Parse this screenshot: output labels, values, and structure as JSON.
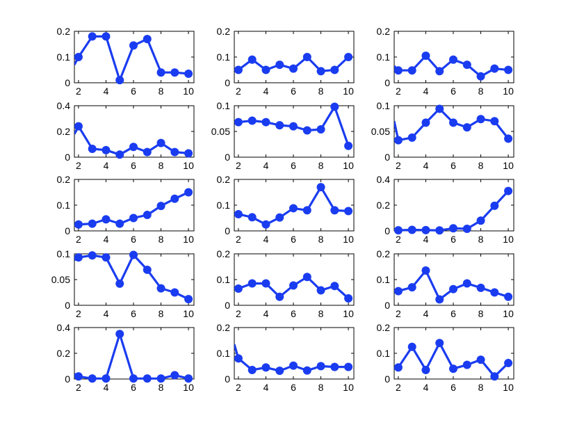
{
  "figure": {
    "background": "#ffffff",
    "series_color": "#1a3cf0"
  },
  "chart_data": [
    {
      "type": "line",
      "row": 1,
      "col": 1,
      "x": [
        1.7,
        2,
        3,
        4,
        5,
        6,
        7,
        8,
        9,
        10
      ],
      "y": [
        0.07,
        0.1,
        0.18,
        0.18,
        0.01,
        0.145,
        0.17,
        0.04,
        0.04,
        0.035
      ],
      "ylim": [
        0,
        0.2
      ],
      "yticks": [
        0,
        0.1,
        0.2
      ],
      "ytick_labels": [
        "0",
        "0.1",
        "0.2"
      ],
      "xlim": [
        1.7,
        10.4
      ],
      "xticks": [
        2,
        4,
        6,
        8,
        10
      ],
      "xtick_labels": [
        "2",
        "4",
        "6",
        "8",
        "10"
      ]
    },
    {
      "type": "line",
      "row": 1,
      "col": 2,
      "x": [
        2,
        3,
        4,
        5,
        6,
        7,
        8,
        9,
        10
      ],
      "y": [
        0.05,
        0.09,
        0.05,
        0.07,
        0.055,
        0.1,
        0.045,
        0.05,
        0.1
      ],
      "ylim": [
        0,
        0.2
      ],
      "yticks": [
        0,
        0.1,
        0.2
      ],
      "ytick_labels": [
        "0",
        "0.1",
        "0.2"
      ],
      "xlim": [
        1.7,
        10.4
      ],
      "xticks": [
        2,
        4,
        6,
        8,
        10
      ],
      "xtick_labels": [
        "2",
        "4",
        "6",
        "8",
        "10"
      ]
    },
    {
      "type": "line",
      "row": 1,
      "col": 3,
      "x": [
        1.7,
        2,
        3,
        4,
        5,
        6,
        7,
        8,
        9,
        10
      ],
      "y": [
        0.065,
        0.048,
        0.048,
        0.105,
        0.045,
        0.09,
        0.07,
        0.025,
        0.055,
        0.05
      ],
      "ylim": [
        0,
        0.2
      ],
      "yticks": [
        0,
        0.1,
        0.2
      ],
      "ytick_labels": [
        "0",
        "0.1",
        "0.2"
      ],
      "xlim": [
        1.7,
        10.4
      ],
      "xticks": [
        2,
        4,
        6,
        8,
        10
      ],
      "xtick_labels": [
        "2",
        "4",
        "6",
        "8",
        "10"
      ]
    },
    {
      "type": "line",
      "row": 2,
      "col": 1,
      "x": [
        1.7,
        2,
        3,
        4,
        5,
        6,
        7,
        8,
        9,
        10
      ],
      "y": [
        0.18,
        0.24,
        0.065,
        0.055,
        0.02,
        0.08,
        0.04,
        0.11,
        0.04,
        0.03
      ],
      "ylim": [
        0,
        0.4
      ],
      "yticks": [
        0,
        0.2,
        0.4
      ],
      "ytick_labels": [
        "0",
        "0.2",
        "0.4"
      ],
      "xlim": [
        1.7,
        10.4
      ],
      "xticks": [
        2,
        4,
        6,
        8,
        10
      ],
      "xtick_labels": [
        "2",
        "4",
        "6",
        "8",
        "10"
      ]
    },
    {
      "type": "line",
      "row": 2,
      "col": 2,
      "x": [
        2,
        3,
        4,
        5,
        6,
        7,
        8,
        9,
        10
      ],
      "y": [
        0.068,
        0.071,
        0.068,
        0.062,
        0.06,
        0.052,
        0.054,
        0.098,
        0.022
      ],
      "ylim": [
        0,
        0.1
      ],
      "yticks": [
        0,
        0.05,
        0.1
      ],
      "ytick_labels": [
        "0",
        "0.05",
        "0.1"
      ],
      "xlim": [
        1.7,
        10.4
      ],
      "xticks": [
        2,
        4,
        6,
        8,
        10
      ],
      "xtick_labels": [
        "2",
        "4",
        "6",
        "8",
        "10"
      ]
    },
    {
      "type": "line",
      "row": 2,
      "col": 3,
      "x": [
        1.7,
        2,
        3,
        4,
        5,
        6,
        7,
        8,
        9,
        10
      ],
      "y": [
        0.07,
        0.033,
        0.038,
        0.067,
        0.094,
        0.067,
        0.058,
        0.074,
        0.07,
        0.036
      ],
      "ylim": [
        0,
        0.1
      ],
      "yticks": [
        0,
        0.05,
        0.1
      ],
      "ytick_labels": [
        "0",
        "0.05",
        "0.1"
      ],
      "xlim": [
        1.7,
        10.4
      ],
      "xticks": [
        2,
        4,
        6,
        8,
        10
      ],
      "xtick_labels": [
        "2",
        "4",
        "6",
        "8",
        "10"
      ]
    },
    {
      "type": "line",
      "row": 3,
      "col": 1,
      "x": [
        1.7,
        2,
        3,
        4,
        5,
        6,
        7,
        8,
        9,
        10
      ],
      "y": [
        0.02,
        0.025,
        0.028,
        0.045,
        0.028,
        0.05,
        0.062,
        0.097,
        0.125,
        0.15
      ],
      "ylim": [
        0,
        0.2
      ],
      "yticks": [
        0,
        0.1,
        0.2
      ],
      "ytick_labels": [
        "0",
        "0.1",
        "0.2"
      ],
      "xlim": [
        1.7,
        10.4
      ],
      "xticks": [
        2,
        4,
        6,
        8,
        10
      ],
      "xtick_labels": [
        "2",
        "4",
        "6",
        "8",
        "10"
      ]
    },
    {
      "type": "line",
      "row": 3,
      "col": 2,
      "x": [
        2,
        3,
        4,
        5,
        6,
        7,
        8,
        9,
        10
      ],
      "y": [
        0.065,
        0.053,
        0.025,
        0.052,
        0.088,
        0.08,
        0.17,
        0.08,
        0.077
      ],
      "ylim": [
        0,
        0.2
      ],
      "yticks": [
        0,
        0.1,
        0.2
      ],
      "ytick_labels": [
        "0",
        "0.1",
        "0.2"
      ],
      "xlim": [
        1.7,
        10.4
      ],
      "xticks": [
        2,
        4,
        6,
        8,
        10
      ],
      "xtick_labels": [
        "2",
        "4",
        "6",
        "8",
        "10"
      ]
    },
    {
      "type": "line",
      "row": 3,
      "col": 3,
      "x": [
        2,
        3,
        4,
        5,
        6,
        7,
        8,
        9,
        10
      ],
      "y": [
        0.005,
        0.008,
        0.006,
        0.004,
        0.02,
        0.016,
        0.08,
        0.195,
        0.31
      ],
      "ylim": [
        0,
        0.4
      ],
      "yticks": [
        0,
        0.2,
        0.4
      ],
      "ytick_labels": [
        "0",
        "0.2",
        "0.4"
      ],
      "xlim": [
        1.7,
        10.4
      ],
      "xticks": [
        2,
        4,
        6,
        8,
        10
      ],
      "xtick_labels": [
        "2",
        "4",
        "6",
        "8",
        "10"
      ]
    },
    {
      "type": "line",
      "row": 4,
      "col": 1,
      "x": [
        1.7,
        2,
        3,
        4,
        5,
        6,
        7,
        8,
        9,
        10
      ],
      "y": [
        0.088,
        0.093,
        0.097,
        0.093,
        0.042,
        0.098,
        0.069,
        0.033,
        0.025,
        0.012
      ],
      "ylim": [
        0,
        0.1
      ],
      "yticks": [
        0,
        0.05,
        0.1
      ],
      "ytick_labels": [
        "0",
        "0.05",
        "0.1"
      ],
      "xlim": [
        1.7,
        10.4
      ],
      "xticks": [
        2,
        4,
        6,
        8,
        10
      ],
      "xtick_labels": [
        "2",
        "4",
        "6",
        "8",
        "10"
      ]
    },
    {
      "type": "line",
      "row": 4,
      "col": 2,
      "x": [
        2,
        3,
        4,
        5,
        6,
        7,
        8,
        9,
        10
      ],
      "y": [
        0.065,
        0.085,
        0.085,
        0.033,
        0.077,
        0.11,
        0.058,
        0.075,
        0.027
      ],
      "ylim": [
        0,
        0.2
      ],
      "yticks": [
        0,
        0.1,
        0.2
      ],
      "ytick_labels": [
        "0",
        "0.1",
        "0.2"
      ],
      "xlim": [
        1.7,
        10.4
      ],
      "xticks": [
        2,
        4,
        6,
        8,
        10
      ],
      "xtick_labels": [
        "2",
        "4",
        "6",
        "8",
        "10"
      ]
    },
    {
      "type": "line",
      "row": 4,
      "col": 3,
      "x": [
        2,
        3,
        4,
        5,
        6,
        7,
        8,
        9,
        10
      ],
      "y": [
        0.055,
        0.07,
        0.135,
        0.023,
        0.063,
        0.085,
        0.068,
        0.05,
        0.033
      ],
      "ylim": [
        0,
        0.2
      ],
      "yticks": [
        0,
        0.1,
        0.2
      ],
      "ytick_labels": [
        "0",
        "0.1",
        "0.2"
      ],
      "xlim": [
        1.7,
        10.4
      ],
      "xticks": [
        2,
        4,
        6,
        8,
        10
      ],
      "xtick_labels": [
        "2",
        "4",
        "6",
        "8",
        "10"
      ]
    },
    {
      "type": "line",
      "row": 5,
      "col": 1,
      "x": [
        1.7,
        2,
        3,
        4,
        5,
        6,
        7,
        8,
        9,
        10
      ],
      "y": [
        0.04,
        0.02,
        0.004,
        0.004,
        0.35,
        0.004,
        0.004,
        0.004,
        0.03,
        0.004
      ],
      "ylim": [
        0,
        0.4
      ],
      "yticks": [
        0,
        0.2,
        0.4
      ],
      "ytick_labels": [
        "0",
        "0.2",
        "0.4"
      ],
      "xlim": [
        1.7,
        10.4
      ],
      "xticks": [
        2,
        4,
        6,
        8,
        10
      ],
      "xtick_labels": [
        "2",
        "4",
        "6",
        "8",
        "10"
      ]
    },
    {
      "type": "line",
      "row": 5,
      "col": 2,
      "x": [
        1.7,
        2,
        3,
        4,
        5,
        6,
        7,
        8,
        9,
        10
      ],
      "y": [
        0.135,
        0.08,
        0.035,
        0.045,
        0.032,
        0.052,
        0.033,
        0.05,
        0.047,
        0.047
      ],
      "ylim": [
        0,
        0.2
      ],
      "yticks": [
        0,
        0.1,
        0.2
      ],
      "ytick_labels": [
        "0",
        "0.1",
        "0.2"
      ],
      "xlim": [
        1.7,
        10.4
      ],
      "xticks": [
        2,
        4,
        6,
        8,
        10
      ],
      "xtick_labels": [
        "2",
        "4",
        "6",
        "8",
        "10"
      ]
    },
    {
      "type": "line",
      "row": 5,
      "col": 3,
      "x": [
        1.7,
        2,
        3,
        4,
        5,
        6,
        7,
        8,
        9,
        10
      ],
      "y": [
        0.04,
        0.045,
        0.125,
        0.035,
        0.14,
        0.04,
        0.055,
        0.075,
        0.01,
        0.062
      ],
      "ylim": [
        0,
        0.2
      ],
      "yticks": [
        0,
        0.1,
        0.2
      ],
      "ytick_labels": [
        "0",
        "0.1",
        "0.2"
      ],
      "xlim": [
        1.7,
        10.4
      ],
      "xticks": [
        2,
        4,
        6,
        8,
        10
      ],
      "xtick_labels": [
        "2",
        "4",
        "6",
        "8",
        "10"
      ]
    }
  ]
}
